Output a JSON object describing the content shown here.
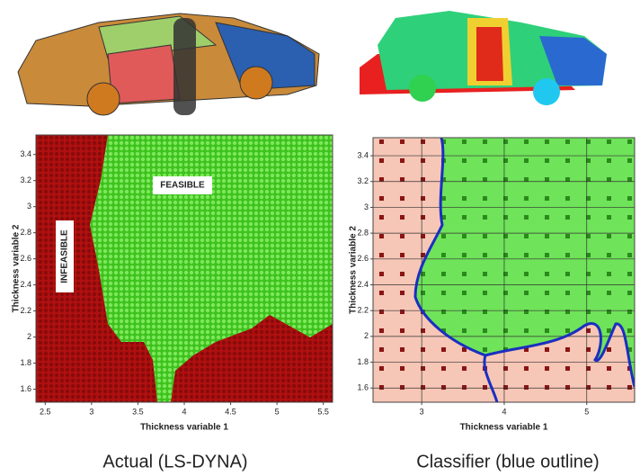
{
  "chart_data": [
    {
      "type": "scatter",
      "xlabel": "Thickness variable 1",
      "ylabel": "Thickness variable 2",
      "xlim": [
        2.4,
        5.6
      ],
      "ylim": [
        1.5,
        3.55
      ],
      "xticks": [
        2.5,
        3,
        3.5,
        4,
        4.5,
        5,
        5.5
      ],
      "yticks": [
        1.6,
        1.8,
        2,
        2.2,
        2.4,
        2.6,
        2.8,
        3,
        3.2,
        3.4
      ],
      "annotations": [
        "FEASIBLE",
        "INFEASIBLE"
      ],
      "grid": false,
      "caption": "Actual (LS-DYNA)"
    },
    {
      "type": "scatter",
      "xlabel": "Thickness variable 1",
      "ylabel": "Thickness variable 2",
      "xlim": [
        2.41,
        5.58
      ],
      "ylim": [
        1.49,
        3.54
      ],
      "xticks": [
        3,
        4,
        5
      ],
      "yticks": [
        1.6,
        1.8,
        2,
        2.2,
        2.4,
        2.6,
        2.8,
        3,
        3.2,
        3.4
      ],
      "grid": true,
      "caption": "Classifier (blue outline)"
    }
  ]
}
